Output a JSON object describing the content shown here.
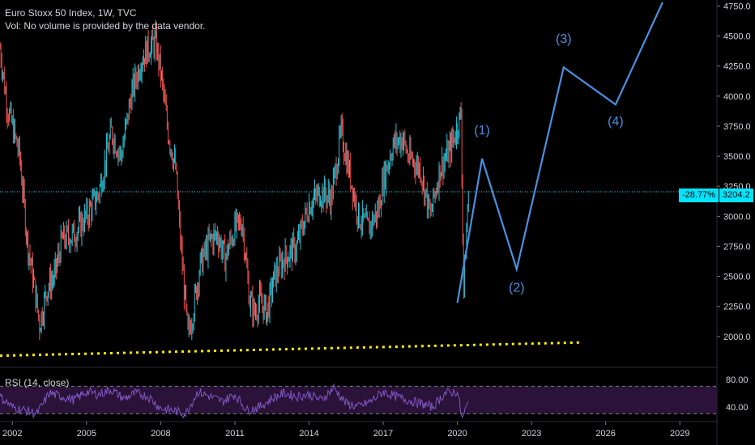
{
  "legend": {
    "title": "Euro Stoxx 50 Index, 1W, TVC",
    "volume_note": "Vol: No volume is provided by the data vendor."
  },
  "rsi": {
    "label": "RSI (14, close)",
    "axis_ticks": [
      "80.00",
      "40.00"
    ]
  },
  "price_tag": {
    "change": "-28.77%",
    "value": "3204.2",
    "color": "#00e5ff"
  },
  "chart_data": {
    "type": "line",
    "title": "Euro Stoxx 50 Index, 1W, TVC",
    "xlabel": "",
    "ylabel": "",
    "y_axis_ticks": [
      "4750.0",
      "4500.0",
      "4250.0",
      "4000.0",
      "3750.0",
      "3500.0",
      "3250.0",
      "3000.0",
      "2750.0",
      "2500.0",
      "2250.0",
      "2000.0"
    ],
    "x_axis_ticks": [
      "2002",
      "2005",
      "2008",
      "2011",
      "2014",
      "2017",
      "2020",
      "2023",
      "2026",
      "2029"
    ],
    "ylim": [
      1750,
      4800
    ],
    "xlim": [
      2001.5,
      2030.5
    ],
    "series": [
      {
        "kind": "price",
        "color_up": "#26c6da",
        "color_down": "#ef5350",
        "x": [
          2001.5,
          2001.8,
          2002.0,
          2002.3,
          2002.6,
          2002.9,
          2003.1,
          2003.4,
          2003.7,
          2004.0,
          2004.5,
          2005.0,
          2005.5,
          2006.0,
          2006.4,
          2006.8,
          2007.2,
          2007.5,
          2007.8,
          2008.0,
          2008.3,
          2008.6,
          2008.8,
          2009.1,
          2009.3,
          2009.6,
          2010.0,
          2010.3,
          2010.6,
          2011.0,
          2011.3,
          2011.6,
          2011.8,
          2012.0,
          2012.3,
          2012.6,
          2013.0,
          2013.5,
          2014.0,
          2014.5,
          2014.9,
          2015.3,
          2015.6,
          2016.0,
          2016.4,
          2016.8,
          2017.0,
          2017.4,
          2017.8,
          2018.0,
          2018.5,
          2018.9,
          2019.3,
          2019.7,
          2020.0,
          2020.15,
          2020.25,
          2020.45
        ],
        "values": [
          4400,
          3900,
          3750,
          3500,
          2800,
          2400,
          2100,
          2400,
          2500,
          2800,
          2850,
          3000,
          3200,
          3700,
          3500,
          4000,
          4300,
          4400,
          4450,
          4200,
          3700,
          3400,
          2800,
          2000,
          2200,
          2600,
          2800,
          2850,
          2650,
          2900,
          2950,
          2300,
          2200,
          2300,
          2200,
          2500,
          2650,
          2750,
          3100,
          3200,
          3150,
          3700,
          3400,
          3000,
          2900,
          3050,
          3300,
          3600,
          3650,
          3500,
          3400,
          3000,
          3400,
          3550,
          3750,
          3850,
          2400,
          3204
        ]
      }
    ],
    "projection": {
      "color": "#4a90e2",
      "waves": [
        {
          "label": "(1)",
          "x": 2021.0,
          "y": 3480
        },
        {
          "label": "(2)",
          "x": 2022.4,
          "y": 2560
        },
        {
          "label": "(3)",
          "x": 2024.3,
          "y": 4240
        },
        {
          "label": "(4)",
          "x": 2026.4,
          "y": 3930
        }
      ],
      "path": [
        [
          2020.0,
          2280
        ],
        [
          2021.0,
          3480
        ],
        [
          2022.4,
          2560
        ],
        [
          2024.3,
          4240
        ],
        [
          2026.4,
          3930
        ],
        [
          2028.3,
          4780
        ]
      ]
    },
    "support_line": {
      "color": "#ffee00",
      "style": "dotted",
      "points": [
        [
          2001.5,
          1840
        ],
        [
          2025.0,
          1950
        ]
      ]
    },
    "current_price_line": {
      "value": 3204.2,
      "color": "#00e5ff",
      "style": "dotted"
    },
    "rsi": {
      "ylim": [
        20,
        95
      ],
      "bands": [
        70,
        30
      ],
      "levels_shown": [
        80,
        40
      ],
      "color": "#7e57c2",
      "x": [
        2001.5,
        2002.0,
        2002.5,
        2003.0,
        2003.5,
        2004.0,
        2004.5,
        2005.0,
        2005.5,
        2006.0,
        2006.5,
        2007.0,
        2007.5,
        2008.0,
        2008.5,
        2009.0,
        2009.5,
        2010.0,
        2010.5,
        2011.0,
        2011.5,
        2012.0,
        2012.5,
        2013.0,
        2013.5,
        2014.0,
        2014.5,
        2015.0,
        2015.5,
        2016.0,
        2016.5,
        2017.0,
        2017.5,
        2018.0,
        2018.5,
        2019.0,
        2019.5,
        2020.0,
        2020.2,
        2020.45
      ],
      "values": [
        55,
        40,
        35,
        30,
        60,
        55,
        50,
        62,
        58,
        65,
        52,
        60,
        55,
        38,
        35,
        30,
        62,
        55,
        48,
        58,
        35,
        40,
        52,
        60,
        55,
        58,
        50,
        68,
        45,
        40,
        48,
        62,
        55,
        50,
        45,
        40,
        60,
        62,
        22,
        48
      ]
    }
  }
}
